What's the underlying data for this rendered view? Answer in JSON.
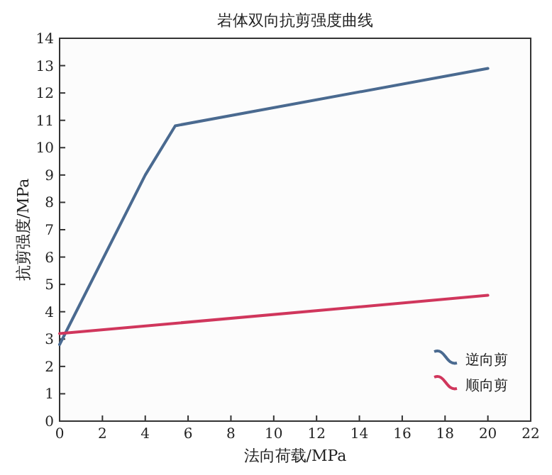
{
  "chart_data": {
    "type": "line",
    "title": "岩体双向抗剪强度曲线",
    "xlabel": "法向荷载/MPa",
    "ylabel": "抗剪强度/MPa",
    "series": [
      {
        "name": "逆向剪",
        "color": "#4a6a90",
        "x": [
          0,
          4,
          5.4,
          20
        ],
        "values": [
          2.8,
          9,
          10.8,
          12.9
        ]
      },
      {
        "name": "顺向剪",
        "color": "#d0365c",
        "x": [
          0,
          20
        ],
        "values": [
          3.2,
          4.6
        ]
      }
    ],
    "xlim": [
      0,
      22
    ],
    "xticks": [
      0,
      2,
      4,
      6,
      8,
      10,
      12,
      14,
      16,
      18,
      20,
      22
    ],
    "ylim": [
      0,
      14
    ],
    "yticks": [
      0,
      1,
      2,
      3,
      4,
      5,
      6,
      7,
      8,
      9,
      10,
      11,
      12,
      13,
      14
    ],
    "grid": false,
    "legend": "bottom right",
    "marker": "none",
    "line_style": "solid"
  }
}
